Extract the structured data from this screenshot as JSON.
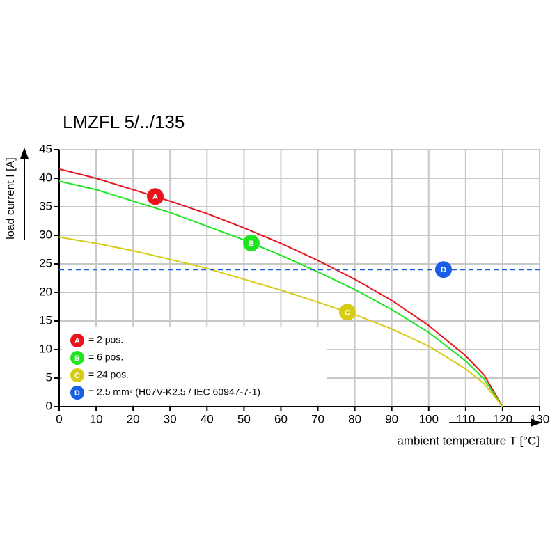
{
  "chart_data": {
    "type": "line",
    "title": "LMZFL 5/../135",
    "ylabel": "load current I [A]",
    "xlabel": "ambient temperature T [°C]",
    "x": [
      0,
      10,
      20,
      30,
      40,
      50,
      60,
      70,
      80,
      90,
      100,
      110,
      115,
      120
    ],
    "series": [
      {
        "key": "A",
        "name": "= 2 pos.",
        "color": "#e8141c",
        "values": [
          41.6,
          40.0,
          38.0,
          36.0,
          33.8,
          31.3,
          28.6,
          25.6,
          22.3,
          18.6,
          14.2,
          8.9,
          5.5,
          0
        ]
      },
      {
        "key": "B",
        "name": "= 6 pos.",
        "color": "#1ee61e",
        "values": [
          39.5,
          38.0,
          36.0,
          34.0,
          31.6,
          29.2,
          26.5,
          23.6,
          20.5,
          17.0,
          13.0,
          8.0,
          4.8,
          0
        ]
      },
      {
        "key": "C",
        "name": "= 24 pos.",
        "color": "#d6cc14",
        "values": [
          29.7,
          28.6,
          27.3,
          25.8,
          24.2,
          22.3,
          20.4,
          18.3,
          16.1,
          13.6,
          10.6,
          6.6,
          4.0,
          0
        ]
      },
      {
        "key": "D",
        "name": "= 2.5 mm² (H07V-K2.5 / IEC 60947-7-1)",
        "color": "#1a5ee6",
        "dashed": true,
        "x": [
          0,
          130
        ],
        "values": [
          24,
          24
        ]
      }
    ],
    "xlim": [
      0,
      130
    ],
    "xticks": [
      0,
      10,
      20,
      30,
      40,
      50,
      60,
      70,
      80,
      90,
      100,
      110,
      120,
      130
    ],
    "ylim": [
      0,
      45
    ],
    "yticks": [
      0,
      5,
      10,
      15,
      20,
      25,
      30,
      35,
      40,
      45
    ],
    "grid": true
  }
}
